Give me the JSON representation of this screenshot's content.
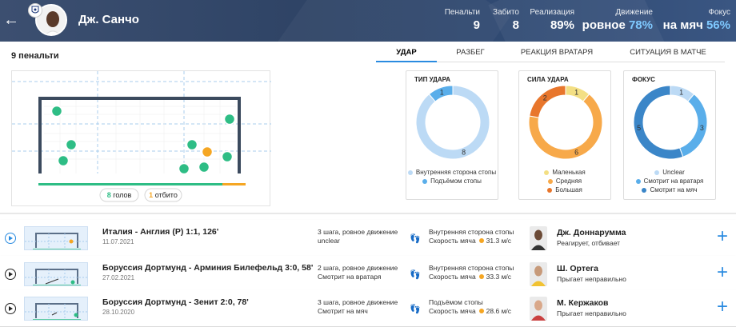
{
  "header": {
    "player_name": "Дж. Санчо",
    "stats": [
      {
        "label": "Пенальти",
        "value": "9",
        "accent": ""
      },
      {
        "label": "Забито",
        "value": "8",
        "accent": ""
      },
      {
        "label": "Реализация",
        "value": "89%",
        "accent": ""
      },
      {
        "label": "Движение",
        "value": "ровное",
        "accent": "78%"
      },
      {
        "label": "Фокус",
        "value": "на мяч",
        "accent": "56%"
      }
    ]
  },
  "summary": {
    "title": "9 пенальти",
    "goals_count": "8",
    "goals_label": "голов",
    "saved_count": "1",
    "saved_label": "отбито",
    "goals_color": "#2ebd85",
    "saved_color": "#f5a623"
  },
  "tabs": [
    {
      "label": "Удар",
      "active": true
    },
    {
      "label": "Разбег",
      "active": false
    },
    {
      "label": "Реакция вратаря",
      "active": false
    },
    {
      "label": "Ситуация в матче",
      "active": false
    }
  ],
  "chart_data": [
    {
      "type": "pie",
      "title": "Тип удара",
      "series": [
        {
          "name": "Внутренняя сторона стопы",
          "value": 8,
          "color": "#bcdaf5"
        },
        {
          "name": "Подъёмом стопы",
          "value": 1,
          "color": "#5aaeea"
        }
      ]
    },
    {
      "type": "pie",
      "title": "Сила удара",
      "series": [
        {
          "name": "Маленькая",
          "value": 1,
          "color": "#f3df84"
        },
        {
          "name": "Средняя",
          "value": 6,
          "color": "#f7a94a"
        },
        {
          "name": "Большая",
          "value": 2,
          "color": "#e8762c"
        }
      ]
    },
    {
      "type": "pie",
      "title": "Фокус",
      "series": [
        {
          "name": "Unclear",
          "value": 1,
          "color": "#bcdaf5"
        },
        {
          "name": "Смотрит на вратаря",
          "value": 3,
          "color": "#5aaeea"
        },
        {
          "name": "Смотрит на мяч",
          "value": 5,
          "color": "#3b86c8"
        }
      ]
    }
  ],
  "penalties": [
    {
      "match": "Италия - Англия (Р) 1:1, 126'",
      "date": "11.07.2021",
      "approach": "3 шага, ровное движение",
      "focus": "unclear",
      "shot_type": "Внутренняя сторона стопы",
      "speed_label": "Скорость мяча",
      "speed": "31.3 м/с",
      "goalkeeper": "Дж. Доннарумма",
      "reaction": "Реагирует, отбивает"
    },
    {
      "match": "Боруссия Дортмунд - Арминия Билефельд 3:0, 58'",
      "date": "27.02.2021",
      "approach": "2 шага, ровное движение",
      "focus": "Смотрит на вратаря",
      "shot_type": "Внутренняя сторона стопы",
      "speed_label": "Скорость мяча",
      "speed": "33.3 м/с",
      "goalkeeper": "Ш. Ортега",
      "reaction": "Прыгает неправильно"
    },
    {
      "match": "Боруссия Дортмунд - Зенит 2:0, 78'",
      "date": "28.10.2020",
      "approach": "3 шага, ровное движение",
      "focus": "Смотрит на мяч",
      "shot_type": "Подъёмом стопы",
      "speed_label": "Скорость мяча",
      "speed": "28.6 м/с",
      "goalkeeper": "М. Кержаков",
      "reaction": "Прыгает неправильно"
    }
  ]
}
